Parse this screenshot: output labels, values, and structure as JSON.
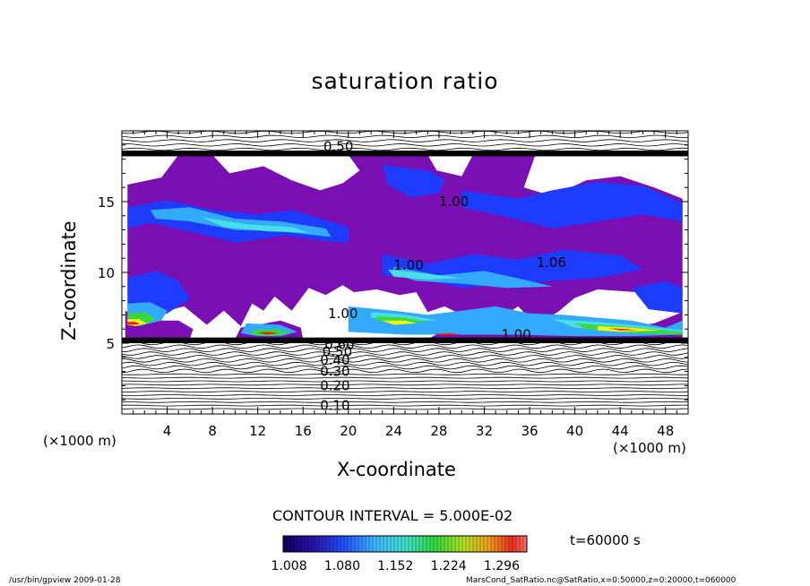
{
  "chart_data": {
    "type": "heatmap",
    "title": "saturation ratio",
    "xlabel": "X-coordinate",
    "ylabel": "Z-coordinate",
    "x_unit": "(×1000 m)",
    "y_unit": "(×1000 m)",
    "xlim": [
      0,
      50
    ],
    "ylim": [
      0,
      20
    ],
    "x_ticks": [
      "4",
      "8",
      "12",
      "16",
      "20",
      "24",
      "28",
      "32",
      "36",
      "40",
      "44",
      "48"
    ],
    "x_tick_values": [
      4,
      8,
      12,
      16,
      20,
      24,
      28,
      32,
      36,
      40,
      44,
      48
    ],
    "y_ticks": [
      "5",
      "10",
      "15"
    ],
    "y_tick_values": [
      5,
      10,
      15
    ],
    "contour_interval_label": "CONTOUR INTERVAL = 5.000E-02",
    "contour_labels": [
      {
        "text": "0.10",
        "x": 17.5,
        "z": 0.6
      },
      {
        "text": "0.20",
        "x": 17.5,
        "z": 2.0
      },
      {
        "text": "0.30",
        "x": 17.5,
        "z": 3.0
      },
      {
        "text": "0.40",
        "x": 17.5,
        "z": 3.8
      },
      {
        "text": "0.50",
        "x": 17.7,
        "z": 4.4
      },
      {
        "text": "0.60",
        "x": 17.9,
        "z": 4.9
      },
      {
        "text": "1.00",
        "x": 28.0,
        "z": 15.0
      },
      {
        "text": "1.00",
        "x": 24.0,
        "z": 10.5
      },
      {
        "text": "1.06",
        "x": 36.6,
        "z": 10.7
      },
      {
        "text": "1.00",
        "x": 33.5,
        "z": 5.6
      },
      {
        "text": "1.00",
        "x": 18.2,
        "z": 7.1
      },
      {
        "text": "0.50",
        "x": 17.8,
        "z": 18.9
      }
    ],
    "colorbar": {
      "ticks": [
        "1.008",
        "1.080",
        "1.152",
        "1.224",
        "1.296"
      ],
      "tick_values": [
        1.008,
        1.08,
        1.152,
        1.224,
        1.296
      ],
      "range": [
        1.0,
        1.33
      ]
    },
    "colors": {
      "low": "#7a0fb3",
      "mid_blue": "#1e3cff",
      "light_blue": "#34aaff",
      "cyan": "#48e0e6",
      "green": "#3ad83a",
      "yellow": "#f2f21a",
      "red": "#f21a1a"
    },
    "regions_supersaturated": [
      {
        "level": "low",
        "poly": [
          [
            0.5,
            16.2
          ],
          [
            3.5,
            16.7
          ],
          [
            5,
            18.3
          ],
          [
            8,
            18.3
          ],
          [
            9.5,
            17
          ],
          [
            12.5,
            17.5
          ],
          [
            15,
            16.5
          ],
          [
            17.5,
            15.8
          ],
          [
            19.5,
            16.3
          ],
          [
            21,
            17.2
          ],
          [
            20,
            18.3
          ],
          [
            27,
            18.3
          ],
          [
            27.8,
            17.2
          ],
          [
            30,
            16.8
          ],
          [
            31,
            18.3
          ],
          [
            36.5,
            18.3
          ],
          [
            35.5,
            16
          ],
          [
            38,
            15.4
          ],
          [
            41,
            16.5
          ],
          [
            44,
            16.8
          ],
          [
            47,
            16
          ],
          [
            49.5,
            15.2
          ],
          [
            49.5,
            8.3
          ],
          [
            47.5,
            7.8
          ],
          [
            45.5,
            8.6
          ],
          [
            42,
            8.8
          ],
          [
            40,
            8.2
          ],
          [
            38.5,
            7.2
          ],
          [
            36.5,
            6.3
          ],
          [
            35,
            7.6
          ],
          [
            33,
            6.6
          ],
          [
            31,
            6.6
          ],
          [
            28.5,
            7.6
          ],
          [
            27,
            7.2
          ],
          [
            26,
            8.6
          ],
          [
            24.5,
            8.4
          ],
          [
            22.5,
            8.8
          ],
          [
            20.5,
            8.6
          ],
          [
            19.5,
            9.1
          ],
          [
            18,
            8.4
          ],
          [
            16.5,
            8.9
          ],
          [
            15,
            7.3
          ],
          [
            13.5,
            8.3
          ],
          [
            12.5,
            7.3
          ],
          [
            11.5,
            7.8
          ],
          [
            10.5,
            6.2
          ],
          [
            9,
            7.3
          ],
          [
            7.5,
            6.3
          ],
          [
            5.5,
            7.6
          ],
          [
            4,
            7.3
          ],
          [
            2.5,
            8.1
          ],
          [
            1.5,
            7.7
          ],
          [
            0.5,
            8.4
          ]
        ]
      },
      {
        "level": "low",
        "poly": [
          [
            0.3,
            5.3
          ],
          [
            6,
            5.3
          ],
          [
            6.3,
            6.0
          ],
          [
            5,
            6.6
          ],
          [
            3.5,
            6.6
          ],
          [
            2,
            6.7
          ],
          [
            0.3,
            7.3
          ]
        ]
      },
      {
        "level": "low",
        "poly": [
          [
            10,
            5.3
          ],
          [
            16,
            5.3
          ],
          [
            15.8,
            6.1
          ],
          [
            14,
            6.6
          ],
          [
            12,
            6.3
          ],
          [
            10.5,
            6.1
          ]
        ]
      },
      {
        "level": "low",
        "poly": [
          [
            27,
            5.3
          ],
          [
            49.5,
            5.3
          ],
          [
            49.5,
            7.2
          ],
          [
            47,
            6.4
          ],
          [
            44,
            6.1
          ],
          [
            41,
            6.1
          ],
          [
            38.5,
            6.3
          ],
          [
            35,
            6.0
          ],
          [
            33,
            5.8
          ],
          [
            31,
            6.0
          ],
          [
            28.5,
            5.9
          ]
        ]
      },
      {
        "level": "mid_blue",
        "poly": [
          [
            0.5,
            14.6
          ],
          [
            4,
            15.1
          ],
          [
            8,
            14.4
          ],
          [
            12,
            14.1
          ],
          [
            15,
            14.4
          ],
          [
            18,
            13.7
          ],
          [
            20,
            13.2
          ],
          [
            20,
            12.1
          ],
          [
            18,
            12.2
          ],
          [
            14.5,
            12.6
          ],
          [
            10,
            12.1
          ],
          [
            6,
            12.9
          ],
          [
            2.5,
            13.5
          ],
          [
            0.5,
            13.1
          ]
        ]
      },
      {
        "level": "mid_blue",
        "poly": [
          [
            23,
            17.6
          ],
          [
            27,
            17.2
          ],
          [
            28.5,
            16.6
          ],
          [
            28,
            15.6
          ],
          [
            25.5,
            15.3
          ],
          [
            23.5,
            16.2
          ]
        ]
      },
      {
        "level": "mid_blue",
        "poly": [
          [
            30,
            15.8
          ],
          [
            35,
            15.2
          ],
          [
            38,
            15.8
          ],
          [
            42,
            16.4
          ],
          [
            46,
            16.1
          ],
          [
            49.5,
            14.9
          ],
          [
            49.5,
            13.6
          ],
          [
            46,
            14.1
          ],
          [
            42,
            13.6
          ],
          [
            38,
            13.1
          ],
          [
            34,
            13.9
          ],
          [
            30,
            14.6
          ]
        ]
      },
      {
        "level": "mid_blue",
        "poly": [
          [
            23,
            11.3
          ],
          [
            27,
            10.6
          ],
          [
            31,
            11.3
          ],
          [
            35,
            10.9
          ],
          [
            39,
            11.6
          ],
          [
            44,
            11.2
          ],
          [
            46,
            10.2
          ],
          [
            42,
            9.6
          ],
          [
            38,
            9.4
          ],
          [
            34,
            9.1
          ],
          [
            30,
            8.9
          ],
          [
            26,
            9.6
          ],
          [
            23,
            9.8
          ]
        ]
      },
      {
        "level": "mid_blue",
        "poly": [
          [
            0.5,
            9.6
          ],
          [
            3,
            10.1
          ],
          [
            5,
            9.4
          ],
          [
            6,
            8.1
          ],
          [
            4,
            7.1
          ],
          [
            2,
            6.6
          ],
          [
            0.5,
            7.1
          ]
        ]
      },
      {
        "level": "mid_blue",
        "poly": [
          [
            45,
            8.9
          ],
          [
            48,
            9.4
          ],
          [
            49.5,
            8.9
          ],
          [
            49.5,
            7.1
          ],
          [
            46.5,
            7.4
          ]
        ]
      },
      {
        "level": "light_blue",
        "poly": [
          [
            2.5,
            14.4
          ],
          [
            6,
            14.6
          ],
          [
            10,
            13.8
          ],
          [
            14,
            13.6
          ],
          [
            18,
            13.1
          ],
          [
            18.5,
            12.5
          ],
          [
            14,
            12.9
          ],
          [
            10,
            13.0
          ],
          [
            6,
            13.6
          ],
          [
            3,
            13.8
          ]
        ]
      },
      {
        "level": "light_blue",
        "poly": [
          [
            24,
            10.4
          ],
          [
            28,
            9.8
          ],
          [
            32,
            10.1
          ],
          [
            36,
            9.4
          ],
          [
            38,
            9.0
          ],
          [
            34,
            8.9
          ],
          [
            30,
            9.2
          ],
          [
            26,
            9.4
          ],
          [
            24,
            9.9
          ]
        ]
      },
      {
        "level": "light_blue",
        "poly": [
          [
            20,
            7.6
          ],
          [
            24,
            7.3
          ],
          [
            27,
            7.0
          ],
          [
            30,
            7.3
          ],
          [
            33,
            7.6
          ],
          [
            36,
            7.1
          ],
          [
            39,
            7.0
          ],
          [
            42,
            6.8
          ],
          [
            45,
            6.6
          ],
          [
            48,
            6.1
          ],
          [
            49.5,
            6.6
          ],
          [
            49.5,
            5.6
          ],
          [
            45,
            5.5
          ],
          [
            40,
            5.5
          ],
          [
            35,
            5.6
          ],
          [
            30,
            5.6
          ],
          [
            25,
            5.6
          ],
          [
            20,
            5.8
          ]
        ]
      },
      {
        "level": "light_blue",
        "poly": [
          [
            0.5,
            7.8
          ],
          [
            2.5,
            7.9
          ],
          [
            4,
            7.3
          ],
          [
            3.5,
            6.6
          ],
          [
            1.5,
            6.2
          ],
          [
            0.5,
            6.4
          ]
        ]
      },
      {
        "level": "light_blue",
        "poly": [
          [
            11,
            6.4
          ],
          [
            14,
            6.3
          ],
          [
            15.5,
            5.8
          ],
          [
            14,
            5.5
          ],
          [
            12,
            5.5
          ],
          [
            10.5,
            5.7
          ]
        ]
      },
      {
        "level": "cyan",
        "poly": [
          [
            7,
            13.9
          ],
          [
            11,
            13.4
          ],
          [
            15,
            13.2
          ],
          [
            16.5,
            12.8
          ],
          [
            13,
            12.9
          ],
          [
            9,
            13.2
          ]
        ]
      },
      {
        "level": "cyan",
        "poly": [
          [
            22,
            7.2
          ],
          [
            25,
            7.0
          ],
          [
            28,
            6.6
          ],
          [
            25,
            6.6
          ],
          [
            22,
            6.8
          ]
        ]
      },
      {
        "level": "cyan",
        "poly": [
          [
            38,
            6.7
          ],
          [
            42,
            6.5
          ],
          [
            46,
            6.2
          ],
          [
            49.5,
            5.9
          ],
          [
            49.5,
            5.6
          ],
          [
            44,
            5.8
          ],
          [
            40,
            6.1
          ]
        ]
      },
      {
        "level": "cyan",
        "poly": [
          [
            23.5,
            10.2
          ],
          [
            27,
            9.9
          ],
          [
            30,
            9.6
          ],
          [
            27,
            9.5
          ],
          [
            24,
            9.7
          ]
        ]
      },
      {
        "level": "green",
        "poly": [
          [
            0.5,
            7.1
          ],
          [
            2,
            7.2
          ],
          [
            3,
            6.7
          ],
          [
            2,
            6.3
          ],
          [
            0.5,
            6.5
          ]
        ]
      },
      {
        "level": "green",
        "poly": [
          [
            22.5,
            6.9
          ],
          [
            25,
            6.8
          ],
          [
            27,
            6.5
          ],
          [
            24.5,
            6.4
          ],
          [
            22.5,
            6.6
          ]
        ]
      },
      {
        "level": "green",
        "poly": [
          [
            40,
            6.4
          ],
          [
            44,
            6.2
          ],
          [
            47,
            6.0
          ],
          [
            49.5,
            5.8
          ],
          [
            49.5,
            5.6
          ],
          [
            45,
            5.7
          ],
          [
            41,
            6.0
          ]
        ]
      },
      {
        "level": "green",
        "poly": [
          [
            11.5,
            5.9
          ],
          [
            13.5,
            6.0
          ],
          [
            15,
            5.7
          ],
          [
            13,
            5.5
          ],
          [
            11.5,
            5.6
          ]
        ]
      },
      {
        "level": "yellow",
        "poly": [
          [
            0.5,
            6.7
          ],
          [
            1.5,
            6.7
          ],
          [
            2.2,
            6.4
          ],
          [
            1.2,
            6.2
          ],
          [
            0.5,
            6.3
          ]
        ]
      },
      {
        "level": "yellow",
        "poly": [
          [
            42,
            6.2
          ],
          [
            45,
            6.1
          ],
          [
            47.5,
            5.9
          ],
          [
            44,
            5.8
          ],
          [
            42,
            5.9
          ]
        ]
      },
      {
        "level": "yellow",
        "poly": [
          [
            23,
            6.6
          ],
          [
            25,
            6.6
          ],
          [
            26,
            6.4
          ],
          [
            24,
            6.3
          ]
        ]
      },
      {
        "level": "red",
        "poly": [
          [
            0.5,
            6.5
          ],
          [
            1.2,
            6.5
          ],
          [
            1.6,
            6.35
          ],
          [
            0.9,
            6.3
          ],
          [
            0.5,
            6.35
          ]
        ]
      },
      {
        "level": "red",
        "poly": [
          [
            43,
            6.05
          ],
          [
            44.5,
            6.0
          ],
          [
            45.5,
            5.92
          ],
          [
            44,
            5.9
          ]
        ]
      },
      {
        "level": "red",
        "poly": [
          [
            12,
            5.75
          ],
          [
            13,
            5.8
          ],
          [
            13.8,
            5.7
          ],
          [
            12.8,
            5.6
          ]
        ]
      },
      {
        "level": "red",
        "poly": [
          [
            27.5,
            5.65
          ],
          [
            29,
            5.7
          ],
          [
            30,
            5.6
          ],
          [
            28.5,
            5.55
          ]
        ]
      }
    ]
  },
  "colorbar_label": "t=60000 s",
  "footer": {
    "left": "/usr/bin/gpview  2009-01-28",
    "right": "MarsCond_SatRatio.nc@SatRatio,x=0:50000,z=0:20000,t=060000"
  }
}
